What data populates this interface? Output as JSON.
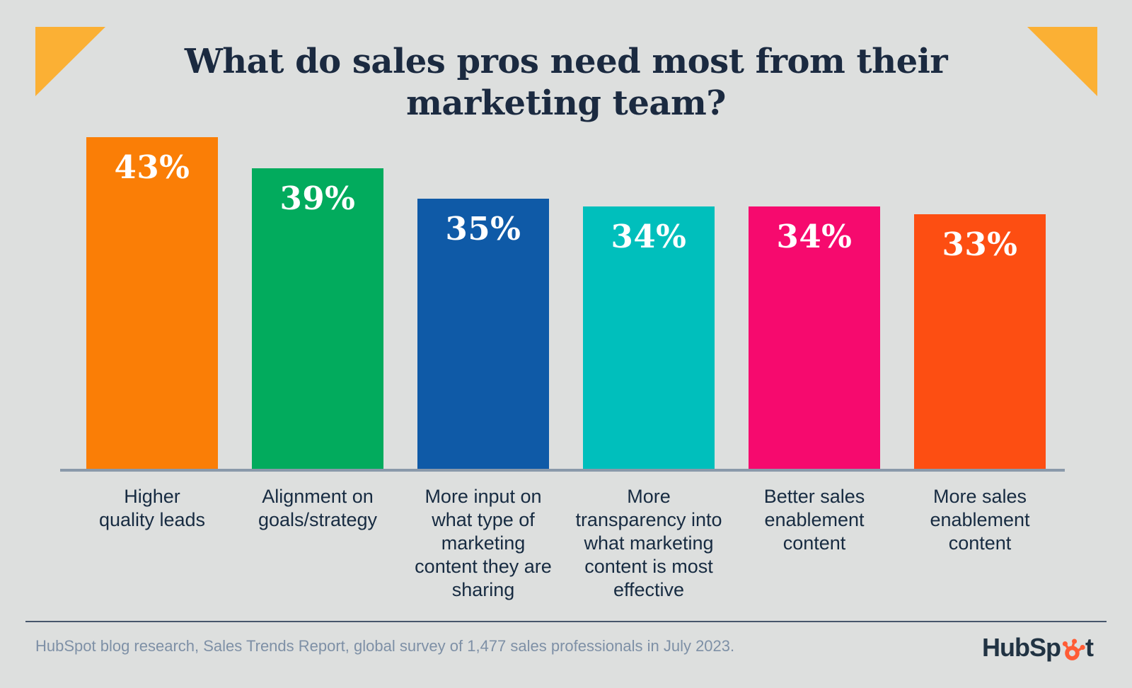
{
  "header": {
    "title_line1": "What do sales pros need most from their",
    "title_line2": "marketing team?"
  },
  "chart_data": {
    "type": "bar",
    "title": "What do sales pros need most from their marketing team?",
    "categories": [
      "Higher quality leads",
      "Alignment on goals/strategy",
      "More input on what type of marketing content they are sharing",
      "More transparency into what marketing content is most effective",
      "Better sales enablement content",
      "More sales enablement content"
    ],
    "category_lines": [
      [
        "Higher",
        "quality leads"
      ],
      [
        "Alignment on",
        "goals/strategy"
      ],
      [
        "More input on",
        "what type of",
        "marketing",
        "content they are",
        "sharing"
      ],
      [
        "More",
        "transparency into",
        "what marketing",
        "content is most",
        "effective"
      ],
      [
        "Better sales",
        "enablement",
        "content"
      ],
      [
        "More sales",
        "enablement",
        "content"
      ]
    ],
    "values": [
      43,
      39,
      35,
      34,
      34,
      33
    ],
    "value_labels": [
      "43%",
      "39%",
      "35%",
      "34%",
      "34%",
      "33%"
    ],
    "bar_colors": [
      "#FA7E06",
      "#02AB5D",
      "#0F5AA7",
      "#00BFBC",
      "#F60A6E",
      "#FD4E12"
    ],
    "unit": "%",
    "xlabel": "",
    "ylabel": "",
    "ylim": [
      0,
      45
    ],
    "grid": false,
    "legend": false
  },
  "footer": {
    "source": "HubSpot blog research, Sales Trends Report, global survey of 1,477 sales professionals in July 2023.",
    "logo_prefix": "HubSp",
    "logo_suffix": "t"
  },
  "colors": {
    "background": "#DDDFDE",
    "corner_triangle": "#FBB034",
    "title_text": "#1B2A40",
    "label_text": "#172B41",
    "axis_line": "#8A99AA",
    "divider": "#47566C",
    "source_text": "#7E90A6",
    "logo_text": "#213343",
    "logo_sprocket": "#FF5C35"
  }
}
